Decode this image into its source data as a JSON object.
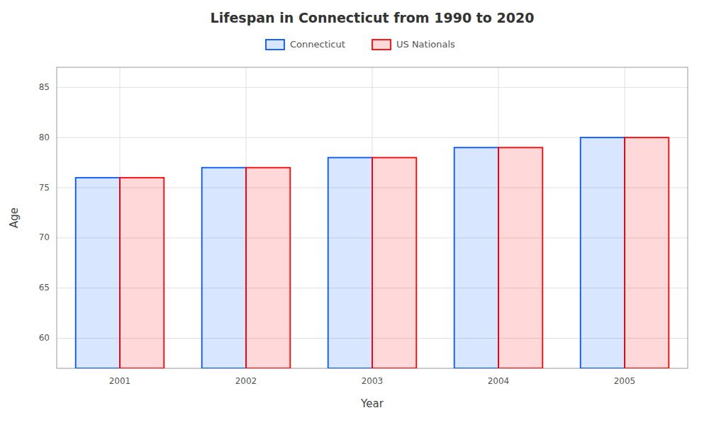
{
  "chart_data": {
    "type": "bar",
    "title": "Lifespan in Connecticut from 1990 to 2020",
    "x_label": "Year",
    "y_label": "Age",
    "categories": [
      "2001",
      "2002",
      "2003",
      "2004",
      "2005"
    ],
    "series": [
      {
        "name": "Connecticut",
        "color": "#0055ff",
        "values": [
          76,
          77,
          78,
          79,
          80
        ]
      },
      {
        "name": "US Nationals",
        "color": "#ff0000",
        "values": [
          76,
          77,
          78,
          79,
          80
        ]
      }
    ],
    "ylim": [
      57,
      87
    ],
    "yticks": [
      60,
      65,
      70,
      75,
      80,
      85
    ],
    "grid": true,
    "legend": "top"
  }
}
